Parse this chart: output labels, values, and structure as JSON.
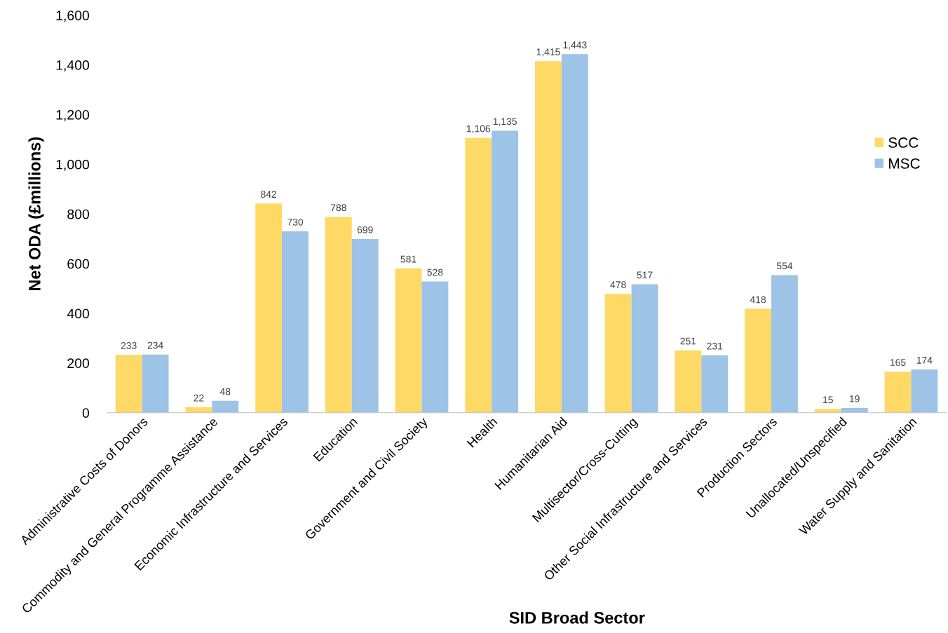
{
  "chart_data": {
    "type": "bar",
    "xlabel": "SID Broad Sector",
    "ylabel": "Net ODA (£millions)",
    "categories": [
      "Administrative Costs of Donors",
      "Commodity and General Programme Assistance",
      "Economic Infrastructure and Services",
      "Education",
      "Government and Civil Society",
      "Health",
      "Humanitarian Aid",
      "Multisector/Cross-Cutting",
      "Other Social Infrastructure and Services",
      "Production Sectors",
      "Unallocated/Unspecified",
      "Water Supply and Sanitation"
    ],
    "series": [
      {
        "name": "SCC",
        "color": "#ffd966",
        "values": [
          233,
          22,
          842,
          788,
          581,
          1106,
          1415,
          478,
          251,
          418,
          15,
          165
        ],
        "value_labels": [
          "233",
          "22",
          "842",
          "788",
          "581",
          "1,106",
          "1,415",
          "478",
          "251",
          "418",
          "15",
          "165"
        ]
      },
      {
        "name": "MSC",
        "color": "#9dc3e6",
        "values": [
          234,
          48,
          730,
          699,
          528,
          1135,
          1443,
          517,
          231,
          554,
          19,
          174
        ],
        "value_labels": [
          "234",
          "48",
          "730",
          "699",
          "528",
          "1,135",
          "1,443",
          "517",
          "231",
          "554",
          "19",
          "174"
        ]
      }
    ],
    "ylim": [
      0,
      1600
    ],
    "yticks": [
      0,
      200,
      400,
      600,
      800,
      {
        "value": 1000,
        "label": "1,000"
      },
      {
        "value": 1200,
        "label": "1,200"
      },
      {
        "value": 1400,
        "label": "1,400"
      },
      {
        "value": 1600,
        "label": "1,600"
      }
    ],
    "grid": false,
    "legend": "right"
  }
}
